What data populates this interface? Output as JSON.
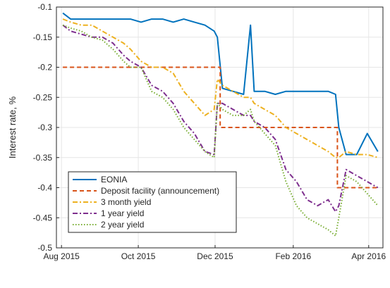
{
  "chart_data": {
    "type": "line",
    "ylabel": "Interest rate, %",
    "xlim": [
      2015.57,
      2016.28
    ],
    "xticks": [
      {
        "value": 2015.581,
        "label": "Aug 2015"
      },
      {
        "value": 2015.748,
        "label": "Oct 2015"
      },
      {
        "value": 2015.915,
        "label": "Dec 2015"
      },
      {
        "value": 2016.085,
        "label": "Feb 2016"
      },
      {
        "value": 2016.249,
        "label": "Apr 2016"
      }
    ],
    "ylim": [
      -0.5,
      -0.1
    ],
    "yticks": [
      -0.5,
      -0.45,
      -0.4,
      -0.35,
      -0.3,
      -0.25,
      -0.2,
      -0.15,
      -0.1
    ],
    "grid": true,
    "legend": "lower left",
    "series": [
      {
        "name": "EONIA",
        "color": "#0072bd",
        "linestyle": "solid",
        "x": [
          2015.584,
          2015.601,
          2015.624,
          2015.647,
          2015.67,
          2015.693,
          2015.716,
          2015.731,
          2015.754,
          2015.777,
          2015.801,
          2015.824,
          2015.847,
          2015.87,
          2015.893,
          2015.913,
          2015.92,
          2015.931,
          2015.954,
          2015.977,
          2015.992,
          2016.0,
          2016.023,
          2016.046,
          2016.069,
          2016.092,
          2016.115,
          2016.138,
          2016.161,
          2016.177,
          2016.184,
          2016.2,
          2016.223,
          2016.246,
          2016.269
        ],
        "values": [
          -0.11,
          -0.12,
          -0.12,
          -0.12,
          -0.12,
          -0.12,
          -0.12,
          -0.12,
          -0.125,
          -0.12,
          -0.12,
          -0.125,
          -0.12,
          -0.125,
          -0.13,
          -0.14,
          -0.15,
          -0.235,
          -0.24,
          -0.245,
          -0.13,
          -0.24,
          -0.24,
          -0.245,
          -0.24,
          -0.24,
          -0.24,
          -0.24,
          -0.24,
          -0.245,
          -0.3,
          -0.345,
          -0.345,
          -0.31,
          -0.34
        ]
      },
      {
        "name": "Deposit facility (announcement)",
        "color": "#d95319",
        "linestyle": "dashed",
        "x": [
          2015.584,
          2015.926,
          2015.926,
          2016.181,
          2016.181,
          2016.269
        ],
        "values": [
          -0.2,
          -0.2,
          -0.3,
          -0.3,
          -0.4,
          -0.4
        ]
      },
      {
        "name": "3 month yield",
        "color": "#edb120",
        "linestyle": "dashdot",
        "x": [
          2015.584,
          2015.601,
          2015.624,
          2015.647,
          2015.67,
          2015.693,
          2015.716,
          2015.731,
          2015.754,
          2015.777,
          2015.801,
          2015.824,
          2015.847,
          2015.87,
          2015.893,
          2015.913,
          2015.92,
          2015.931,
          2015.954,
          2015.977,
          2015.992,
          2016.0,
          2016.023,
          2016.046,
          2016.069,
          2016.092,
          2016.115,
          2016.138,
          2016.161,
          2016.177,
          2016.184,
          2016.2,
          2016.223,
          2016.246,
          2016.269
        ],
        "values": [
          -0.12,
          -0.125,
          -0.13,
          -0.13,
          -0.14,
          -0.15,
          -0.16,
          -0.17,
          -0.19,
          -0.2,
          -0.2,
          -0.21,
          -0.24,
          -0.26,
          -0.28,
          -0.27,
          -0.22,
          -0.23,
          -0.24,
          -0.25,
          -0.25,
          -0.26,
          -0.27,
          -0.28,
          -0.3,
          -0.31,
          -0.32,
          -0.33,
          -0.34,
          -0.35,
          -0.35,
          -0.34,
          -0.345,
          -0.345,
          -0.35
        ]
      },
      {
        "name": "1 year yield",
        "color": "#7e2f8e",
        "linestyle": "dashdot",
        "x": [
          2015.584,
          2015.601,
          2015.624,
          2015.647,
          2015.67,
          2015.693,
          2015.716,
          2015.731,
          2015.754,
          2015.777,
          2015.801,
          2015.824,
          2015.847,
          2015.87,
          2015.893,
          2015.913,
          2015.92,
          2015.931,
          2015.954,
          2015.977,
          2015.992,
          2016.0,
          2016.023,
          2016.046,
          2016.069,
          2016.092,
          2016.115,
          2016.138,
          2016.161,
          2016.177,
          2016.184,
          2016.2,
          2016.223,
          2016.246,
          2016.269
        ],
        "values": [
          -0.13,
          -0.14,
          -0.145,
          -0.15,
          -0.15,
          -0.16,
          -0.18,
          -0.19,
          -0.2,
          -0.23,
          -0.24,
          -0.26,
          -0.29,
          -0.31,
          -0.34,
          -0.345,
          -0.26,
          -0.26,
          -0.27,
          -0.28,
          -0.28,
          -0.29,
          -0.3,
          -0.32,
          -0.37,
          -0.39,
          -0.42,
          -0.43,
          -0.42,
          -0.44,
          -0.43,
          -0.37,
          -0.38,
          -0.39,
          -0.4
        ]
      },
      {
        "name": "2 year yield",
        "color": "#77ac30",
        "linestyle": "dotted",
        "x": [
          2015.584,
          2015.601,
          2015.624,
          2015.647,
          2015.67,
          2015.693,
          2015.716,
          2015.731,
          2015.754,
          2015.777,
          2015.801,
          2015.824,
          2015.847,
          2015.87,
          2015.893,
          2015.913,
          2015.92,
          2015.931,
          2015.954,
          2015.977,
          2015.992,
          2016.0,
          2016.023,
          2016.046,
          2016.069,
          2016.092,
          2016.115,
          2016.138,
          2016.161,
          2016.177,
          2016.184,
          2016.2,
          2016.223,
          2016.246,
          2016.269
        ],
        "values": [
          -0.13,
          -0.135,
          -0.14,
          -0.15,
          -0.155,
          -0.17,
          -0.19,
          -0.2,
          -0.2,
          -0.24,
          -0.25,
          -0.27,
          -0.3,
          -0.32,
          -0.34,
          -0.35,
          -0.26,
          -0.27,
          -0.28,
          -0.28,
          -0.27,
          -0.29,
          -0.31,
          -0.33,
          -0.39,
          -0.43,
          -0.45,
          -0.46,
          -0.47,
          -0.48,
          -0.45,
          -0.38,
          -0.39,
          -0.41,
          -0.43
        ]
      }
    ]
  }
}
